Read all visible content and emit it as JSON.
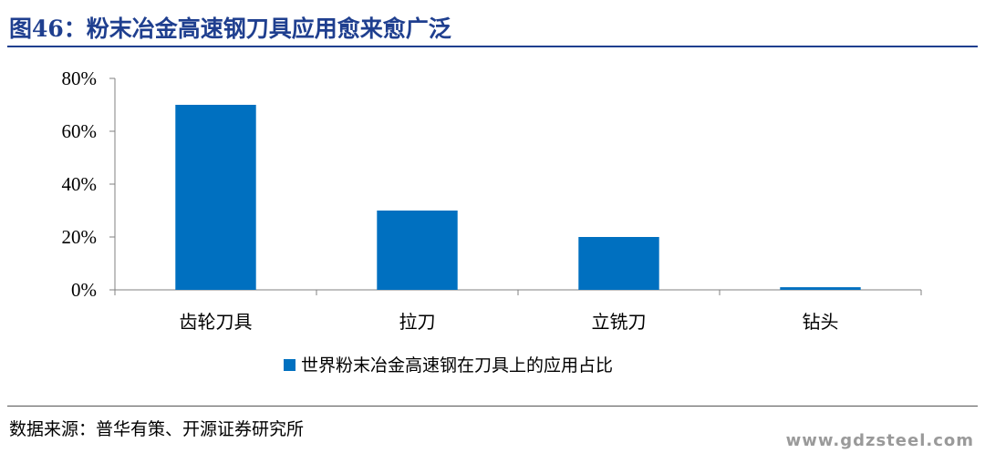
{
  "figure": {
    "title": "图46：粉末冶金高速钢刀具应用愈来愈广泛",
    "source": "数据来源：普华有策、开源证券研究所",
    "watermark": "www.gdzsteel.com"
  },
  "colors": {
    "bar": "#0070c0",
    "title": "#1f3f8f",
    "axis": "#808080"
  },
  "chart_data": {
    "type": "bar",
    "categories": [
      "齿轮刀具",
      "拉刀",
      "立铣刀",
      "钻头"
    ],
    "series": [
      {
        "name": "世界粉末冶金高速钢在刀具上的应用占比",
        "values": [
          70,
          30,
          20,
          1
        ]
      }
    ],
    "ylim": [
      0,
      80
    ],
    "yticks": [
      "0%",
      "20%",
      "40%",
      "60%",
      "80%"
    ],
    "ytick_values": [
      0,
      20,
      40,
      60,
      80
    ],
    "legend_position": "bottom",
    "grid": false
  }
}
